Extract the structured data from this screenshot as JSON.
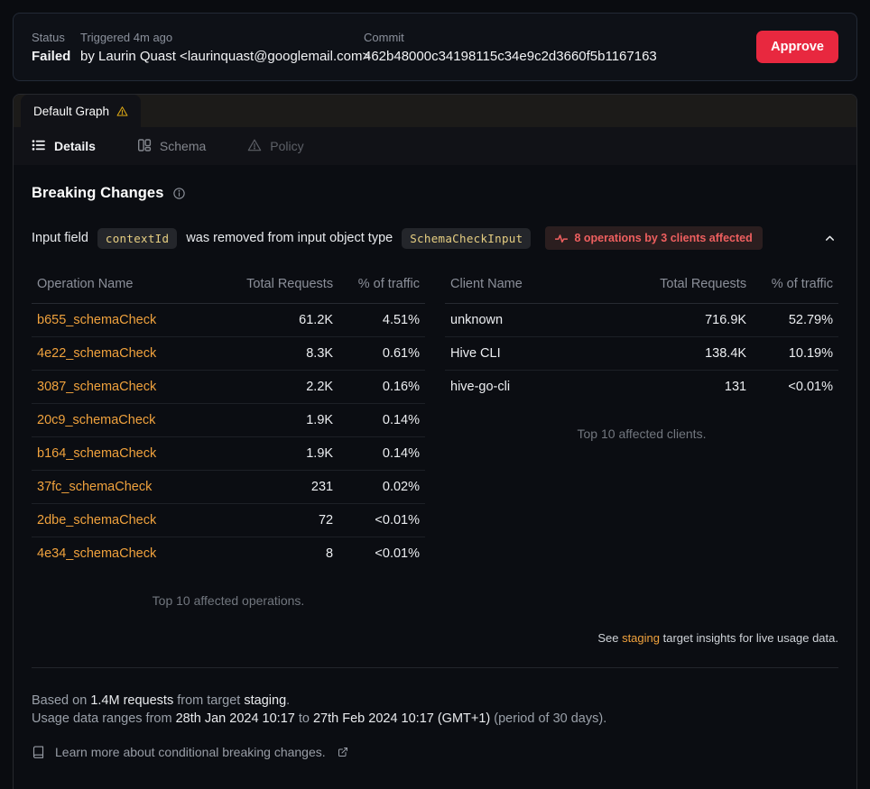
{
  "colors": {
    "accent_orange": "#f0a23d",
    "approve_red": "#e8283f",
    "impact_red": "#ee5f5f",
    "warning_yellow": "#d9a514"
  },
  "header_card": {
    "status_label": "Status",
    "status_value": "Failed",
    "triggered_label": "Triggered 4m ago",
    "triggered_value": "by Laurin Quast <laurinquast@googlemail.com>",
    "commit_label": "Commit",
    "commit_value": "462b48000c34198115c34e9c2d3660f5b1167163",
    "approve_label": "Approve"
  },
  "graph_tab": {
    "label": "Default Graph"
  },
  "nav": {
    "details": "Details",
    "schema": "Schema",
    "policy": "Policy"
  },
  "section": {
    "title": "Breaking Changes",
    "change": {
      "prefix": "Input field",
      "field_code": "contextId",
      "middle": "was removed from input object type",
      "type_code": "SchemaCheckInput",
      "impact_badge": "8 operations by 3 clients affected"
    }
  },
  "operations_table": {
    "headers": [
      "Operation Name",
      "Total Requests",
      "% of traffic"
    ],
    "rows": [
      {
        "name": "b655_schemaCheck",
        "requests": "61.2K",
        "traffic": "4.51%"
      },
      {
        "name": "4e22_schemaCheck",
        "requests": "8.3K",
        "traffic": "0.61%"
      },
      {
        "name": "3087_schemaCheck",
        "requests": "2.2K",
        "traffic": "0.16%"
      },
      {
        "name": "20c9_schemaCheck",
        "requests": "1.9K",
        "traffic": "0.14%"
      },
      {
        "name": "b164_schemaCheck",
        "requests": "1.9K",
        "traffic": "0.14%"
      },
      {
        "name": "37fc_schemaCheck",
        "requests": "231",
        "traffic": "0.02%"
      },
      {
        "name": "2dbe_schemaCheck",
        "requests": "72",
        "traffic": "<0.01%"
      },
      {
        "name": "4e34_schemaCheck",
        "requests": "8",
        "traffic": "<0.01%"
      }
    ],
    "caption": "Top 10 affected operations."
  },
  "clients_table": {
    "headers": [
      "Client Name",
      "Total Requests",
      "% of traffic"
    ],
    "rows": [
      {
        "name": "unknown",
        "requests": "716.9K",
        "traffic": "52.79%"
      },
      {
        "name": "Hive CLI",
        "requests": "138.4K",
        "traffic": "10.19%"
      },
      {
        "name": "hive-go-cli",
        "requests": "131",
        "traffic": "<0.01%"
      }
    ],
    "caption": "Top 10 affected clients."
  },
  "insights_note": {
    "prefix": "See ",
    "link": "staging",
    "suffix": " target insights for live usage data."
  },
  "footer": {
    "based_prefix": "Based on ",
    "requests": "1.4M requests",
    "based_middle": " from target ",
    "target": "staging",
    "based_suffix": ".",
    "range_prefix": "Usage data ranges from ",
    "range_start": "28th Jan 2024 10:17",
    "range_to": " to ",
    "range_end": "27th Feb 2024 10:17 (GMT+1)",
    "range_suffix": " (period of 30 days).",
    "learn_more": "Learn more about conditional breaking changes."
  }
}
